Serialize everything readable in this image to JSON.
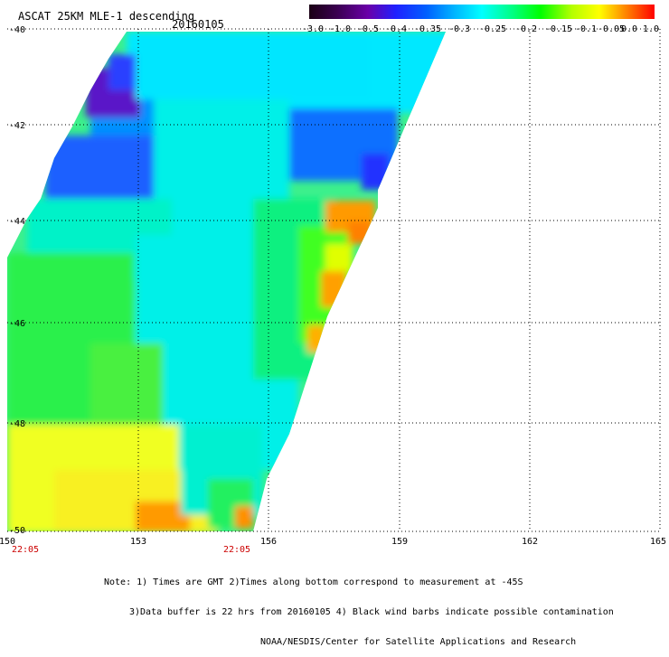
{
  "header": {
    "title": "ASCAT 25KM MLE-1 descending",
    "date": "20160105"
  },
  "colorbar": {
    "labels": [
      "-3.0",
      "-1.0",
      "-0.5",
      "-0.4",
      "-0.35",
      "-0.3",
      "-0.25",
      "-0.2",
      "-0.15",
      "-0.1",
      "-0.05",
      "0.0",
      "1.0"
    ],
    "colors": [
      "#1a0014",
      "#3a0050",
      "#6a00a8",
      "#2020ff",
      "#0060ff",
      "#00b4ff",
      "#00ffff",
      "#00ff80",
      "#00ff00",
      "#b4ff00",
      "#ffff00",
      "#ff8000",
      "#ff0000"
    ]
  },
  "map": {
    "lat_labels": [
      "-40",
      "-42",
      "-44",
      "-46",
      "-48",
      "-50"
    ],
    "lon_labels": [
      "150",
      "153",
      "156",
      "159",
      "162",
      "165"
    ],
    "time_labels": [
      "22:05",
      "22:05"
    ]
  },
  "notes": {
    "line1": "Note: 1) Times are GMT 2)Times along bottom correspond to measurement at -45S",
    "line2": "3)Data buffer is 22 hrs from 20160105 4) Black wind barbs indicate possible contamination",
    "line3": "NOAA/NESDIS/Center for Satellite Applications and Research"
  }
}
